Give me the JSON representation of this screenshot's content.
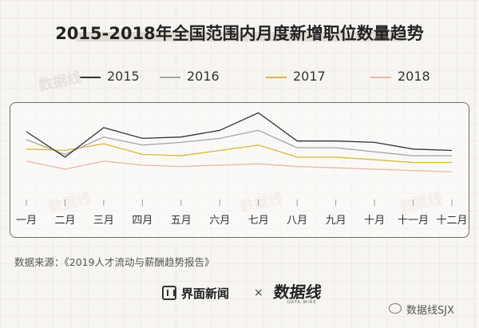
{
  "title": "2015-2018年全国范围内月度新增职位数量趋势",
  "source": "数据来源：《2019人才流动与薪酬趋势报告》",
  "footer": {
    "brand1": "界面新闻",
    "separator": "×",
    "brand2": "数据线",
    "brand2_sub": "DATA WIRE",
    "wechat": "数据线SJX"
  },
  "watermark_text": "数据线",
  "chart_data": {
    "type": "line",
    "title": "2015-2018年全国范围内月度新增职位数量趋势",
    "xlabel": "",
    "ylabel": "",
    "categories": [
      "一月",
      "二月",
      "三月",
      "四月",
      "五月",
      "六月",
      "七月",
      "八月",
      "九月",
      "十月",
      "十一月",
      "十二月"
    ],
    "ylim": [
      0,
      100
    ],
    "grid": false,
    "legend_position": "top",
    "series": [
      {
        "name": "2015",
        "color": "#333333",
        "values": [
          78,
          59,
          81,
          73,
          74,
          79,
          92,
          71,
          71,
          70,
          65,
          64
        ]
      },
      {
        "name": "2016",
        "color": "#a6a6a6",
        "values": [
          72,
          61,
          74,
          68,
          70,
          73,
          79,
          66,
          66,
          63,
          60,
          60
        ]
      },
      {
        "name": "2017",
        "color": "#d9b73a",
        "values": [
          65,
          64,
          69,
          61,
          60,
          64,
          68,
          59,
          59,
          57,
          55,
          55
        ]
      },
      {
        "name": "2018",
        "color": "#e8b6a0",
        "values": [
          56,
          50,
          56,
          53,
          52,
          53,
          54,
          52,
          51,
          50,
          49,
          48
        ]
      }
    ]
  }
}
